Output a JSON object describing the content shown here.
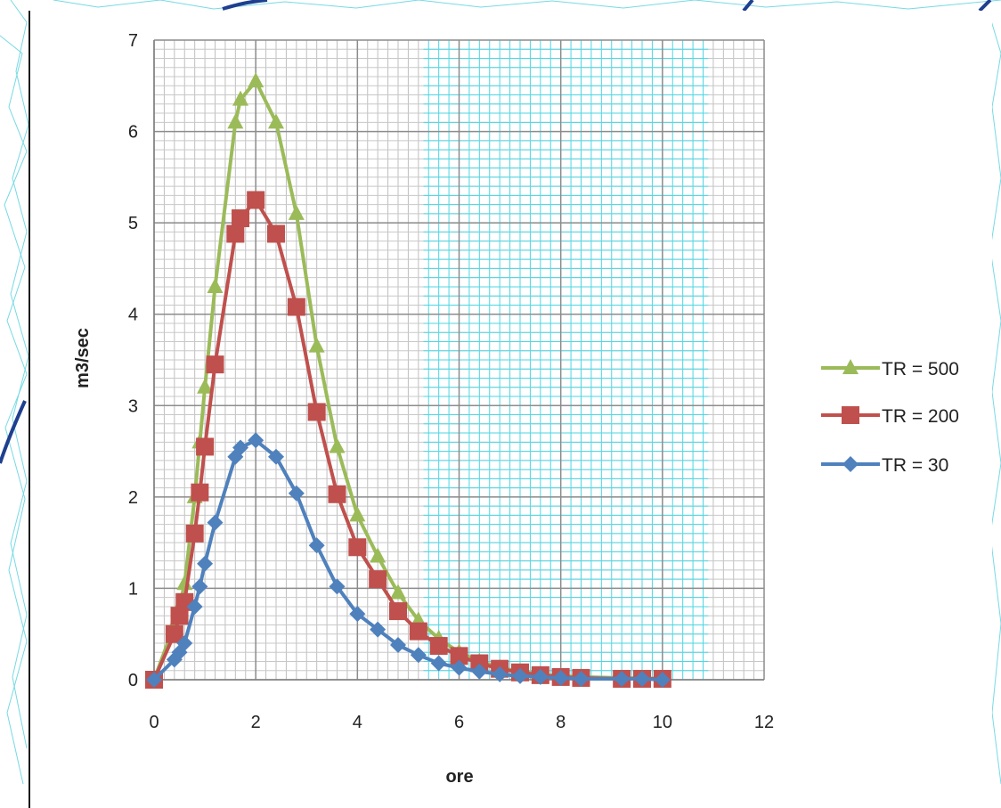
{
  "chart_data": {
    "type": "line",
    "title": "",
    "xlabel": "ore",
    "ylabel": "m3/sec",
    "xlim": [
      0,
      12
    ],
    "ylim": [
      0,
      7
    ],
    "x_ticks": [
      "0",
      "2",
      "4",
      "6",
      "8",
      "10",
      "12"
    ],
    "y_ticks": [
      "0",
      "1",
      "2",
      "3",
      "4",
      "5",
      "6",
      "7"
    ],
    "grid": true,
    "legend_position": "right",
    "series": [
      {
        "name": "TR = 500",
        "color": "#9bbb59",
        "marker": "triangle",
        "points": [
          [
            0,
            0
          ],
          [
            0.4,
            0.6
          ],
          [
            0.5,
            0.8
          ],
          [
            0.6,
            1.05
          ],
          [
            0.8,
            2.0
          ],
          [
            0.9,
            2.6
          ],
          [
            1.0,
            3.2
          ],
          [
            1.2,
            4.3
          ],
          [
            1.6,
            6.1
          ],
          [
            1.7,
            6.35
          ],
          [
            2.0,
            6.55
          ],
          [
            2.4,
            6.1
          ],
          [
            2.8,
            5.1
          ],
          [
            3.2,
            3.65
          ],
          [
            3.6,
            2.55
          ],
          [
            4.0,
            1.8
          ],
          [
            4.4,
            1.35
          ],
          [
            4.8,
            0.95
          ],
          [
            5.2,
            0.65
          ],
          [
            5.6,
            0.45
          ],
          [
            6.0,
            0.3
          ],
          [
            6.4,
            0.2
          ],
          [
            6.8,
            0.13
          ],
          [
            7.2,
            0.09
          ],
          [
            7.6,
            0.06
          ],
          [
            8.0,
            0.04
          ],
          [
            8.4,
            0.03
          ],
          [
            9.2,
            0.02
          ],
          [
            9.6,
            0.02
          ],
          [
            10.0,
            0.01
          ]
        ]
      },
      {
        "name": "TR = 200",
        "color": "#c0504d",
        "marker": "square",
        "points": [
          [
            0,
            0
          ],
          [
            0.4,
            0.5
          ],
          [
            0.5,
            0.7
          ],
          [
            0.6,
            0.85
          ],
          [
            0.8,
            1.6
          ],
          [
            0.9,
            2.05
          ],
          [
            1.0,
            2.55
          ],
          [
            1.2,
            3.45
          ],
          [
            1.6,
            4.88
          ],
          [
            1.7,
            5.05
          ],
          [
            2.0,
            5.25
          ],
          [
            2.4,
            4.88
          ],
          [
            2.8,
            4.08
          ],
          [
            3.2,
            2.93
          ],
          [
            3.6,
            2.03
          ],
          [
            4.0,
            1.45
          ],
          [
            4.4,
            1.1
          ],
          [
            4.8,
            0.75
          ],
          [
            5.2,
            0.53
          ],
          [
            5.6,
            0.37
          ],
          [
            6.0,
            0.26
          ],
          [
            6.4,
            0.18
          ],
          [
            6.8,
            0.12
          ],
          [
            7.2,
            0.08
          ],
          [
            7.6,
            0.05
          ],
          [
            8.0,
            0.03
          ],
          [
            8.4,
            0.02
          ],
          [
            9.2,
            0.01
          ],
          [
            9.6,
            0.01
          ],
          [
            10.0,
            0.01
          ]
        ]
      },
      {
        "name": "TR = 30",
        "color": "#4f81bd",
        "marker": "diamond",
        "points": [
          [
            0,
            0
          ],
          [
            0.4,
            0.22
          ],
          [
            0.5,
            0.3
          ],
          [
            0.6,
            0.4
          ],
          [
            0.8,
            0.8
          ],
          [
            0.9,
            1.02
          ],
          [
            1.0,
            1.27
          ],
          [
            1.2,
            1.72
          ],
          [
            1.6,
            2.44
          ],
          [
            1.7,
            2.54
          ],
          [
            2.0,
            2.62
          ],
          [
            2.4,
            2.44
          ],
          [
            2.8,
            2.04
          ],
          [
            3.2,
            1.47
          ],
          [
            3.6,
            1.02
          ],
          [
            4.0,
            0.72
          ],
          [
            4.4,
            0.55
          ],
          [
            4.8,
            0.38
          ],
          [
            5.2,
            0.27
          ],
          [
            5.6,
            0.18
          ],
          [
            6.0,
            0.13
          ],
          [
            6.4,
            0.09
          ],
          [
            6.8,
            0.06
          ],
          [
            7.2,
            0.04
          ],
          [
            7.6,
            0.03
          ],
          [
            8.0,
            0.02
          ],
          [
            8.4,
            0.01
          ],
          [
            9.2,
            0.01
          ],
          [
            9.6,
            0.01
          ],
          [
            10.0,
            0.0
          ]
        ]
      }
    ]
  }
}
